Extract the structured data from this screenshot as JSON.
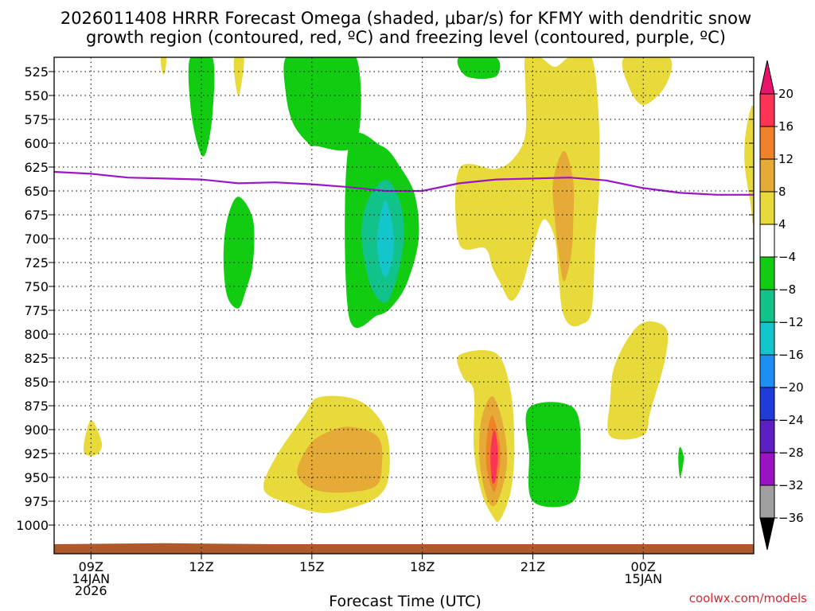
{
  "chart_data": {
    "type": "time-height cross section (filled contour)",
    "title_lines": [
      "2026011408 HRRR Forecast Omega (shaded, μbar/s) for KFMY with dendritic snow",
      "growth region (contoured, red, ºC) and freezing level (contoured, purple, ºC)"
    ],
    "xlabel": "Forecast Time (UTC)",
    "ylabel": "",
    "credit": "coolwx.com/models",
    "x_range_hours": [
      8.0,
      27.0
    ],
    "y_range_hpa": [
      510,
      1030
    ],
    "y_ticks": [
      525,
      550,
      575,
      600,
      625,
      650,
      675,
      700,
      725,
      750,
      775,
      800,
      825,
      850,
      875,
      900,
      925,
      950,
      975,
      1000
    ],
    "x_ticks": [
      {
        "hour": 9,
        "lines": [
          "09Z",
          "14JAN",
          "2026"
        ]
      },
      {
        "hour": 12,
        "lines": [
          "12Z"
        ]
      },
      {
        "hour": 15,
        "lines": [
          "15Z"
        ]
      },
      {
        "hour": 18,
        "lines": [
          "18Z"
        ]
      },
      {
        "hour": 21,
        "lines": [
          "21Z"
        ]
      },
      {
        "hour": 24,
        "lines": [
          "00Z",
          "15JAN"
        ]
      }
    ],
    "colorbar": {
      "labels": [
        "20",
        "16",
        "12",
        "8",
        "4",
        "−4",
        "−8",
        "−12",
        "−16",
        "−20",
        "−24",
        "−28",
        "−32",
        "−36"
      ],
      "bins": [
        {
          "range": [
            16,
            20
          ],
          "color": "#ff3355"
        },
        {
          "range": [
            12,
            16
          ],
          "color": "#f0822a"
        },
        {
          "range": [
            8,
            12
          ],
          "color": "#e6aa37"
        },
        {
          "range": [
            4,
            8
          ],
          "color": "#e8da3a"
        },
        {
          "range": [
            -4,
            4
          ],
          "color": "#ffffff"
        },
        {
          "range": [
            -8,
            -4
          ],
          "color": "#11cc11"
        },
        {
          "range": [
            -12,
            -8
          ],
          "color": "#11c28a"
        },
        {
          "range": [
            -16,
            -12
          ],
          "color": "#13c6cc"
        },
        {
          "range": [
            -20,
            -16
          ],
          "color": "#1d8ef2"
        },
        {
          "range": [
            -24,
            -20
          ],
          "color": "#1f3cdb"
        },
        {
          "range": [
            -28,
            -24
          ],
          "color": "#5b1fc4"
        },
        {
          "range": [
            -32,
            -28
          ],
          "color": "#9b12c2"
        },
        {
          "range": [
            -36,
            -32
          ],
          "color": "#a0a0a0"
        }
      ],
      "top_extend_color": "#e8146c",
      "bottom_extend_color": "#000000"
    },
    "shaded_regions": [
      {
        "name": "green-upper-12z",
        "value_bin": "-8 to -4",
        "color": "#11cc11",
        "points": [
          [
            11.7,
            510
          ],
          [
            12.3,
            510
          ],
          [
            12.3,
            570
          ],
          [
            12.1,
            612
          ],
          [
            11.9,
            602
          ],
          [
            11.7,
            560
          ]
        ]
      },
      {
        "name": "yellow-upper-13z-a",
        "value_bin": "4 to 8",
        "color": "#e8da3a",
        "points": [
          [
            12.9,
            510
          ],
          [
            13.15,
            510
          ],
          [
            13.1,
            535
          ],
          [
            13.0,
            550
          ],
          [
            12.9,
            530
          ]
        ]
      },
      {
        "name": "yellow-upper-1030z",
        "value_bin": "4 to 8",
        "color": "#e8da3a",
        "points": [
          [
            10.9,
            510
          ],
          [
            11.05,
            510
          ],
          [
            11.0,
            527
          ],
          [
            10.93,
            525
          ]
        ]
      },
      {
        "name": "green-upper-15z-s",
        "value_bin": "-8 to -4",
        "color": "#11cc11",
        "points": [
          [
            14.3,
            510
          ],
          [
            15.1,
            510
          ],
          [
            16.2,
            510
          ],
          [
            16.2,
            600
          ],
          [
            15.1,
            603
          ],
          [
            14.9,
            600
          ],
          [
            14.5,
            580
          ],
          [
            14.3,
            550
          ]
        ]
      },
      {
        "name": "green-mid-16z",
        "value_bin": "-8 to -4",
        "color": "#11cc11",
        "points": [
          [
            16.0,
            603
          ],
          [
            16.9,
            603
          ],
          [
            17.4,
            625
          ],
          [
            17.8,
            655
          ],
          [
            17.9,
            700
          ],
          [
            17.6,
            745
          ],
          [
            17.2,
            770
          ],
          [
            16.8,
            780
          ],
          [
            16.0,
            780
          ]
        ]
      },
      {
        "name": "teal-mid-17z",
        "value_bin": "-12 to -8",
        "color": "#11c28a",
        "points": [
          [
            17.0,
            638
          ],
          [
            17.4,
            662
          ],
          [
            17.5,
            700
          ],
          [
            17.3,
            742
          ],
          [
            17.0,
            767
          ],
          [
            16.6,
            750
          ],
          [
            16.35,
            700
          ],
          [
            16.5,
            662
          ]
        ]
      },
      {
        "name": "cyan-mid-17z",
        "value_bin": "-16 to -12",
        "color": "#13c6cc",
        "points": [
          [
            17.0,
            660
          ],
          [
            17.2,
            690
          ],
          [
            17.2,
            720
          ],
          [
            17.0,
            740
          ],
          [
            16.8,
            720
          ],
          [
            16.8,
            690
          ]
        ]
      },
      {
        "name": "green-upper-20z",
        "value_bin": "-8 to -4",
        "color": "#11cc11",
        "points": [
          [
            19.0,
            510
          ],
          [
            20.0,
            510
          ],
          [
            20.0,
            530
          ],
          [
            19.2,
            530
          ]
        ]
      },
      {
        "name": "yellow-mid-20z",
        "value_bin": "4 to 8",
        "color": "#e8da3a",
        "points": [
          [
            20.8,
            510
          ],
          [
            21.2,
            510
          ],
          [
            21.6,
            520
          ],
          [
            22.0,
            510
          ],
          [
            22.6,
            510
          ],
          [
            22.8,
            580
          ],
          [
            22.8,
            650
          ],
          [
            22.7,
            700
          ],
          [
            22.6,
            775
          ],
          [
            22.3,
            790
          ],
          [
            22.0,
            790
          ],
          [
            21.8,
            775
          ],
          [
            21.7,
            740
          ],
          [
            21.6,
            700
          ],
          [
            21.3,
            680
          ],
          [
            21.0,
            710
          ],
          [
            20.7,
            750
          ],
          [
            20.4,
            765
          ],
          [
            20.1,
            745
          ],
          [
            19.9,
            730
          ],
          [
            19.7,
            710
          ],
          [
            19.0,
            705
          ],
          [
            19.0,
            627
          ],
          [
            20.0,
            627
          ],
          [
            20.5,
            615
          ],
          [
            20.8,
            590
          ],
          [
            20.8,
            540
          ]
        ]
      },
      {
        "name": "orange-mid-22z",
        "value_bin": "8 to 12",
        "color": "#e6aa37",
        "points": [
          [
            21.85,
            608
          ],
          [
            22.1,
            640
          ],
          [
            22.1,
            680
          ],
          [
            22.05,
            715
          ],
          [
            21.85,
            745
          ],
          [
            21.7,
            715
          ],
          [
            21.6,
            680
          ],
          [
            21.55,
            640
          ]
        ]
      },
      {
        "name": "yellow-upper-00z",
        "value_bin": "4 to 8",
        "color": "#e8da3a",
        "points": [
          [
            23.5,
            510
          ],
          [
            24.7,
            510
          ],
          [
            24.6,
            540
          ],
          [
            24.0,
            560
          ],
          [
            23.6,
            540
          ]
        ]
      },
      {
        "name": "yellow-mid-edge",
        "value_bin": "4 to 8",
        "color": "#e8da3a",
        "points": [
          [
            27.0,
            565
          ],
          [
            27.0,
            680
          ],
          [
            26.9,
            660
          ],
          [
            26.75,
            620
          ],
          [
            26.8,
            585
          ]
        ]
      },
      {
        "name": "green-left-13z",
        "value_bin": "-8 to -4",
        "color": "#11cc11",
        "points": [
          [
            13.0,
            656
          ],
          [
            13.4,
            680
          ],
          [
            13.4,
            725
          ],
          [
            13.2,
            755
          ],
          [
            13.0,
            773
          ],
          [
            12.7,
            760
          ],
          [
            12.6,
            720
          ],
          [
            12.7,
            680
          ]
        ]
      },
      {
        "name": "yellow-low-0830z",
        "value_bin": "4 to 8",
        "color": "#e8da3a",
        "points": [
          [
            9.0,
            890
          ],
          [
            9.3,
            915
          ],
          [
            9.1,
            927
          ],
          [
            8.8,
            922
          ]
        ]
      },
      {
        "name": "yellow-low-15z",
        "value_bin": "4 to 8",
        "color": "#e8da3a",
        "points": [
          [
            15.2,
            866
          ],
          [
            16.3,
            870
          ],
          [
            17.0,
            900
          ],
          [
            17.1,
            945
          ],
          [
            16.8,
            970
          ],
          [
            15.9,
            984
          ],
          [
            15.2,
            987
          ],
          [
            14.4,
            978
          ],
          [
            13.7,
            963
          ],
          [
            14.0,
            930
          ],
          [
            14.8,
            885
          ]
        ]
      },
      {
        "name": "orange-low-15z",
        "value_bin": "8 to 12",
        "color": "#e6aa37",
        "points": [
          [
            15.3,
            905
          ],
          [
            16.0,
            897
          ],
          [
            16.8,
            908
          ],
          [
            16.9,
            940
          ],
          [
            16.7,
            960
          ],
          [
            15.8,
            966
          ],
          [
            15.0,
            962
          ],
          [
            14.6,
            945
          ],
          [
            14.9,
            918
          ]
        ]
      },
      {
        "name": "yellow-low-20z",
        "value_bin": "4 to 8",
        "color": "#e8da3a",
        "points": [
          [
            19.0,
            822
          ],
          [
            20.0,
            820
          ],
          [
            20.4,
            860
          ],
          [
            20.5,
            920
          ],
          [
            20.4,
            965
          ],
          [
            20.1,
            995
          ],
          [
            19.9,
            990
          ],
          [
            19.6,
            965
          ],
          [
            19.4,
            920
          ],
          [
            19.4,
            860
          ],
          [
            19.1,
            845
          ]
        ]
      },
      {
        "name": "orange-low-20z",
        "value_bin": "8 to 12",
        "color": "#e6aa37",
        "points": [
          [
            19.9,
            865
          ],
          [
            20.2,
            895
          ],
          [
            20.3,
            935
          ],
          [
            20.1,
            970
          ],
          [
            19.9,
            980
          ],
          [
            19.7,
            965
          ],
          [
            19.55,
            930
          ],
          [
            19.6,
            890
          ]
        ]
      },
      {
        "name": "darkorange-low-20z",
        "value_bin": "12 to 16",
        "color": "#f0822a",
        "points": [
          [
            19.9,
            885
          ],
          [
            20.1,
            915
          ],
          [
            20.1,
            940
          ],
          [
            19.95,
            965
          ],
          [
            19.75,
            940
          ],
          [
            19.75,
            910
          ]
        ]
      },
      {
        "name": "red-low-20z",
        "value_bin": "16 to 20",
        "color": "#ff3355",
        "points": [
          [
            19.95,
            900
          ],
          [
            20.05,
            922
          ],
          [
            20.0,
            950
          ],
          [
            19.9,
            955
          ],
          [
            19.85,
            925
          ]
        ]
      },
      {
        "name": "green-low-21z",
        "value_bin": "-8 to -4",
        "color": "#11cc11",
        "points": [
          [
            20.9,
            877
          ],
          [
            22.1,
            877
          ],
          [
            22.3,
            925
          ],
          [
            22.1,
            975
          ],
          [
            21.0,
            975
          ],
          [
            20.9,
            925
          ]
        ]
      },
      {
        "name": "yellow-low-00z",
        "value_bin": "4 to 8",
        "color": "#e8da3a",
        "points": [
          [
            23.9,
            790
          ],
          [
            24.6,
            793
          ],
          [
            24.6,
            825
          ],
          [
            24.2,
            880
          ],
          [
            24.0,
            906
          ],
          [
            23.1,
            907
          ],
          [
            23.1,
            870
          ],
          [
            23.25,
            830
          ]
        ]
      },
      {
        "name": "green-low-01z",
        "value_bin": "-8 to -4",
        "color": "#11cc11",
        "points": [
          [
            25.0,
            918
          ],
          [
            25.1,
            930
          ],
          [
            25.0,
            950
          ],
          [
            24.95,
            930
          ]
        ]
      }
    ],
    "freezing_level": {
      "label": "0 ºC freezing level",
      "color": "#9a16c8",
      "points": [
        [
          8.0,
          630
        ],
        [
          9.0,
          632
        ],
        [
          10.0,
          636
        ],
        [
          11.0,
          637
        ],
        [
          12.0,
          638
        ],
        [
          13.0,
          642
        ],
        [
          14.0,
          641
        ],
        [
          15.0,
          643
        ],
        [
          16.0,
          646
        ],
        [
          17.0,
          650
        ],
        [
          18.0,
          650
        ],
        [
          19.0,
          642
        ],
        [
          20.0,
          638
        ],
        [
          21.0,
          637
        ],
        [
          22.0,
          636
        ],
        [
          23.0,
          639
        ],
        [
          24.0,
          647
        ],
        [
          25.0,
          652
        ],
        [
          26.0,
          654
        ],
        [
          27.0,
          654
        ]
      ]
    },
    "ground_color": "#b05a2b",
    "ground_top_hpa": [
      [
        8.0,
        1020
      ],
      [
        11.0,
        1019
      ],
      [
        14.0,
        1020
      ],
      [
        17.0,
        1020
      ],
      [
        20.0,
        1020
      ],
      [
        24.0,
        1020
      ],
      [
        27.0,
        1020
      ]
    ]
  }
}
